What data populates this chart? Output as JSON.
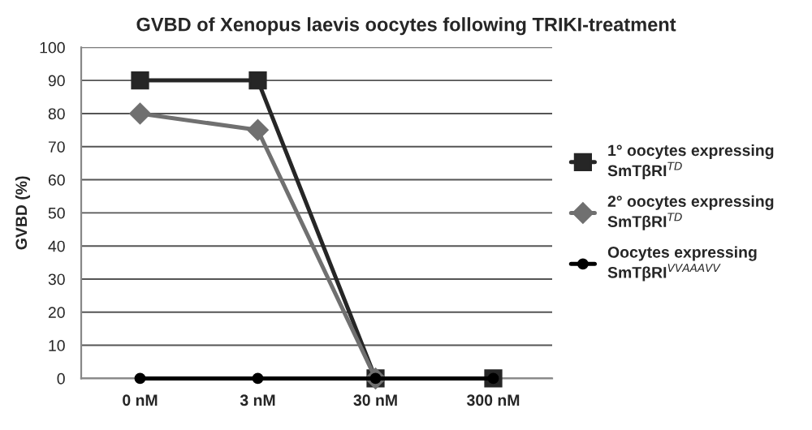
{
  "chart_data": {
    "type": "line",
    "title": "GVBD of Xenopus laevis oocytes following TRIKI-treatment",
    "ylabel": "GVBD (%)",
    "categories": [
      "0 nM",
      "3 nM",
      "30 nM",
      "300 nM"
    ],
    "series": [
      {
        "name": "1° oocytes expressing SmTβRI$^{TD}$",
        "color": "#262626",
        "marker": "square",
        "values": [
          90,
          90,
          0,
          0
        ]
      },
      {
        "name": "2° oocytes expressing SmTβRI$^{TD}$",
        "color": "#707070",
        "marker": "diamond",
        "values": [
          80,
          75,
          0,
          null
        ]
      },
      {
        "name": "Oocytes expressing SmTβRI$^{VVAAAVV}$",
        "color": "#000000",
        "marker": "circle",
        "values": [
          0,
          0,
          0,
          0
        ]
      }
    ],
    "ylim": [
      0,
      100
    ],
    "yticks": [
      0,
      10,
      20,
      30,
      40,
      50,
      60,
      70,
      80,
      90,
      100
    ],
    "grid": "y",
    "legend": "right"
  }
}
